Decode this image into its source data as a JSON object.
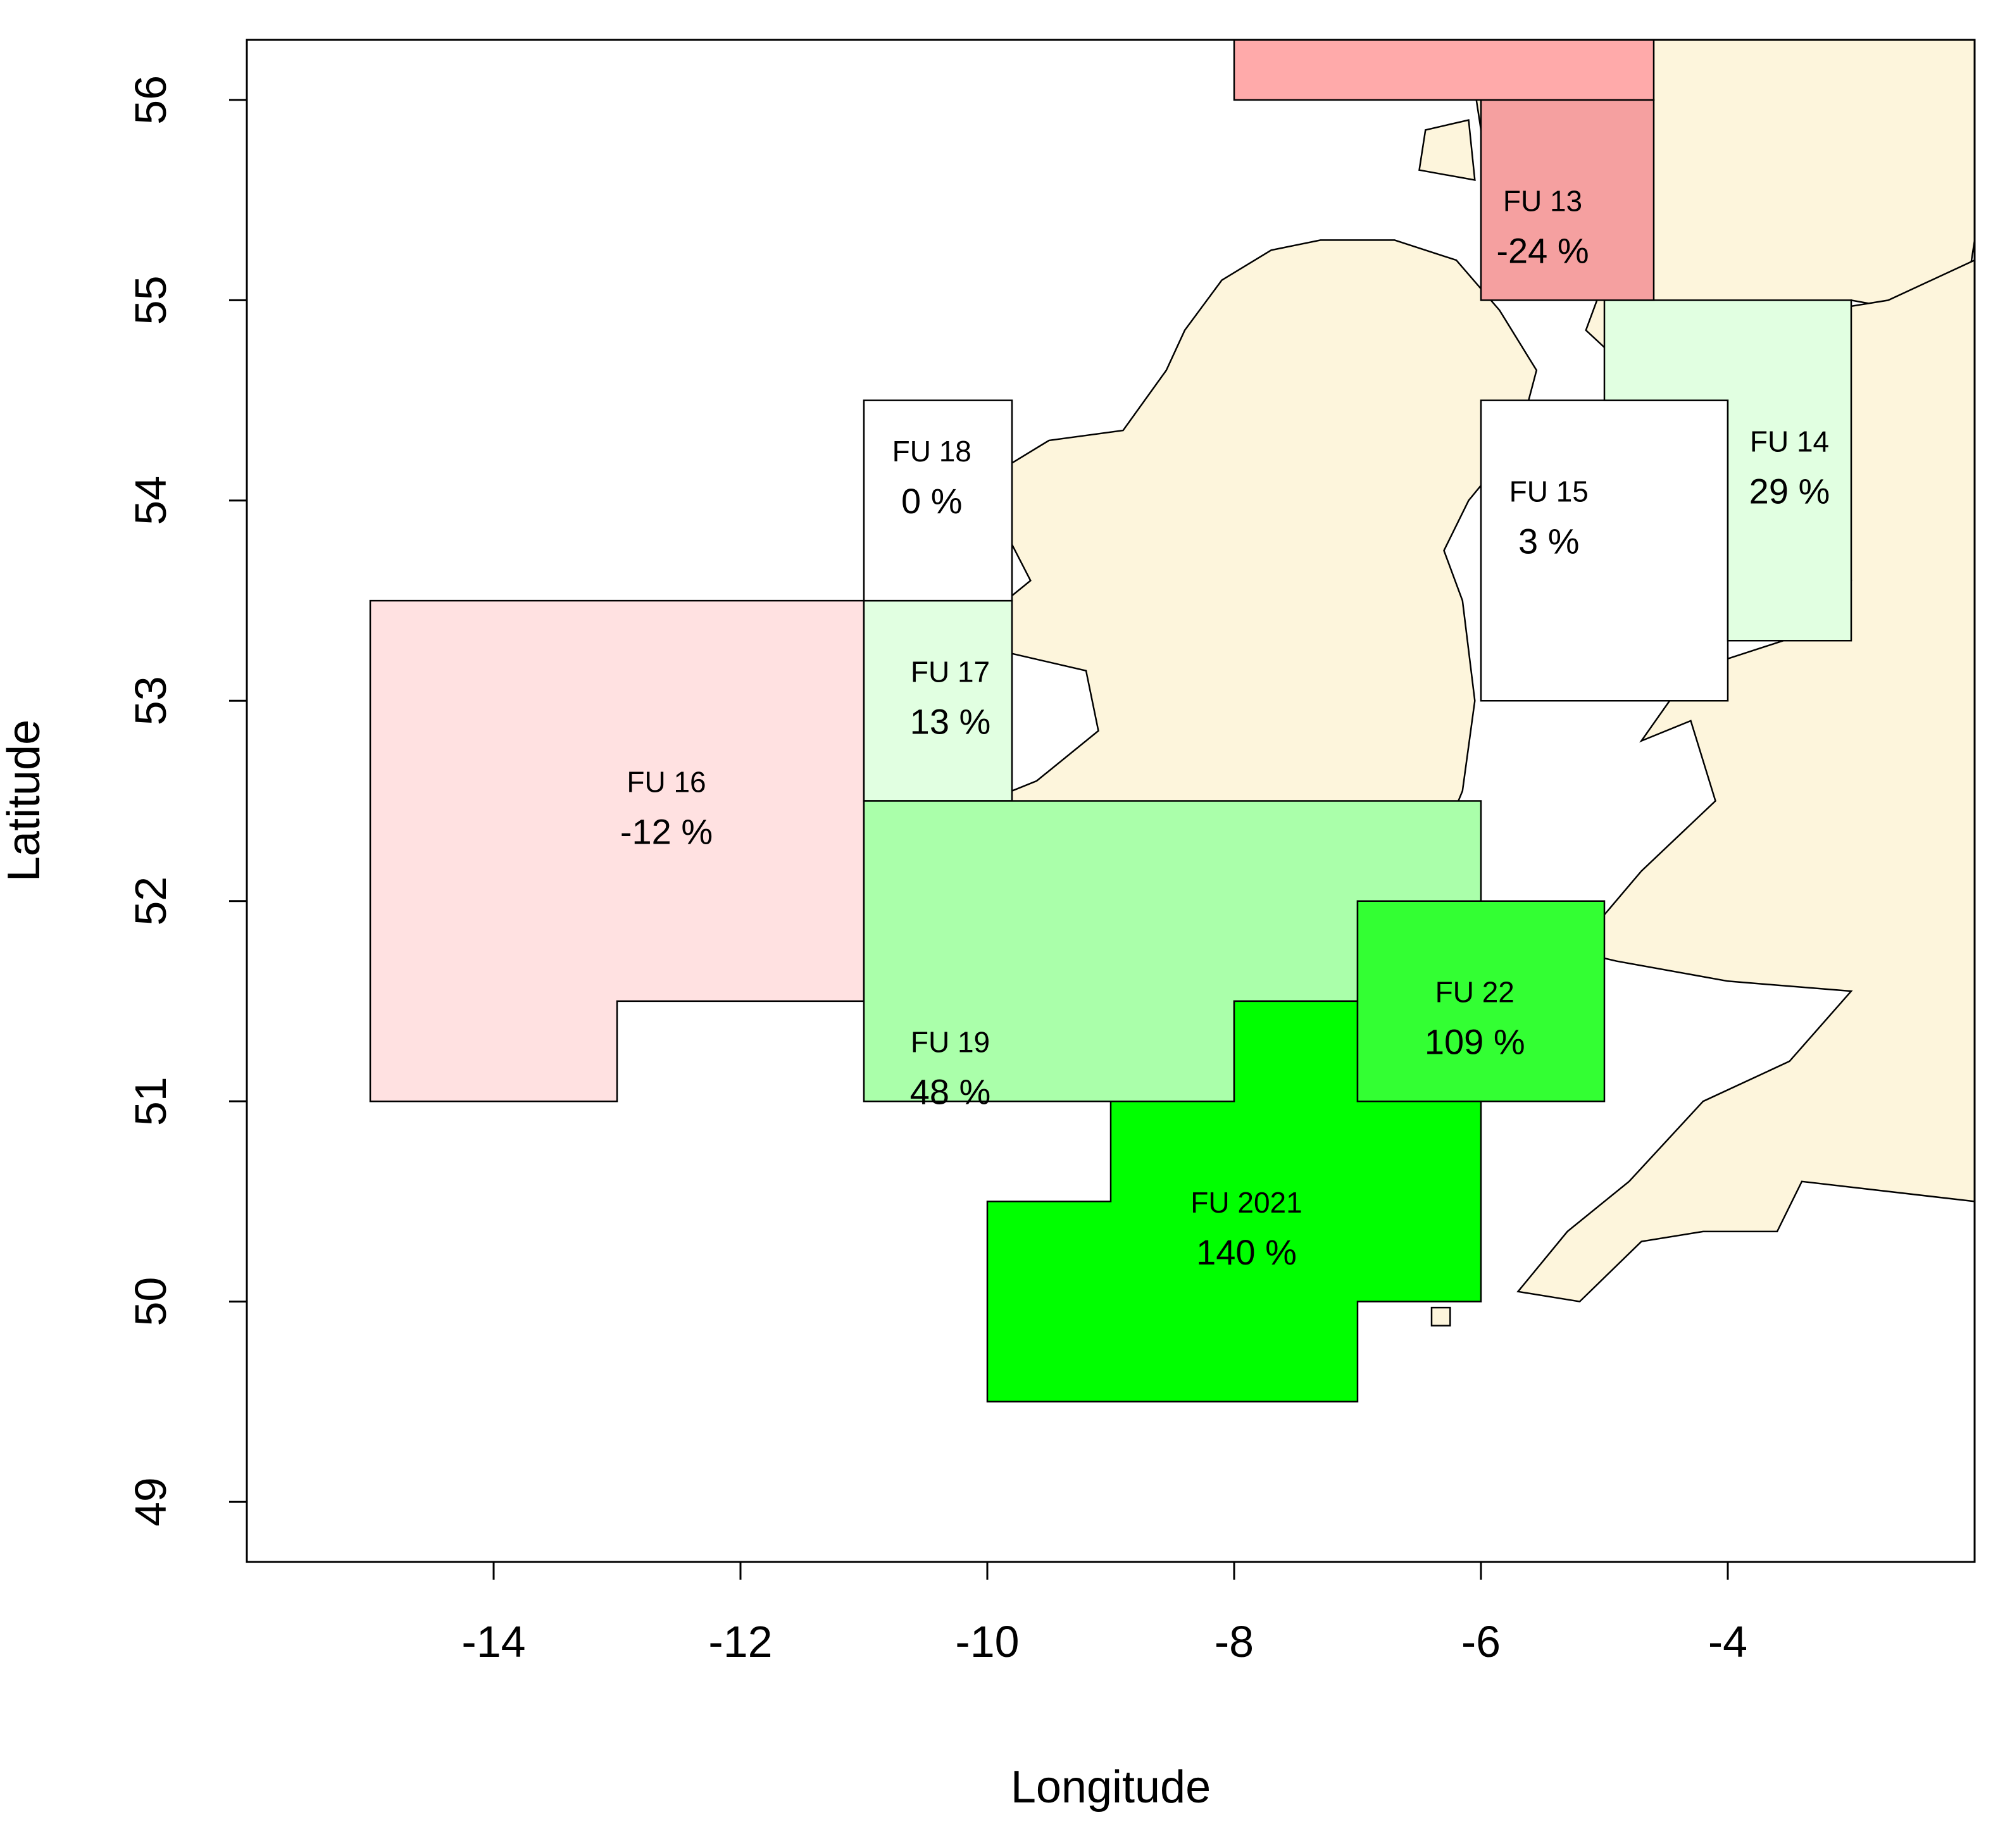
{
  "map": {
    "xlabel": "Longitude",
    "ylabel": "Latitude",
    "xlim": [
      -16,
      -2
    ],
    "ylim": [
      48.7,
      56.3
    ],
    "x_ticks": [
      -14,
      -12,
      -10,
      -8,
      -6,
      -4
    ],
    "y_ticks": [
      49,
      50,
      51,
      52,
      53,
      54,
      55,
      56
    ],
    "x_tick_labels": [
      "-14",
      "-12",
      "-10",
      "-8",
      "-6",
      "-4"
    ],
    "y_tick_labels": [
      "49",
      "50",
      "51",
      "52",
      "53",
      "54",
      "55",
      "56"
    ],
    "land_color": "#FDF5DC",
    "units": [
      {
        "id": "fu-16",
        "name": "FU 16",
        "pct": "-12 %",
        "value": -12,
        "color": "#FFE1E1",
        "coords": [
          [
            -15,
            53.5
          ],
          [
            -11,
            53.5
          ],
          [
            -11,
            51.5
          ],
          [
            -13,
            51.5
          ],
          [
            -13,
            51
          ],
          [
            -15,
            51
          ]
        ],
        "label_lon": -12.6,
        "label_lat": 52.45
      },
      {
        "id": "fu-17",
        "name": "FU 17",
        "pct": "13 %",
        "value": 13,
        "color": "#E1FFE1",
        "coords": [
          [
            -11,
            53.5
          ],
          [
            -9.8,
            53.5
          ],
          [
            -9.8,
            52.5
          ],
          [
            -11,
            52.5
          ]
        ],
        "label_lon": -10.3,
        "label_lat": 53.0
      },
      {
        "id": "fu-18",
        "name": "FU 18",
        "pct": "0 %",
        "value": 0,
        "color": "#FFFFFF",
        "coords": [
          [
            -11,
            54.5
          ],
          [
            -9.8,
            54.5
          ],
          [
            -9.8,
            53.5
          ],
          [
            -11,
            53.5
          ]
        ],
        "label_lon": -10.45,
        "label_lat": 54.1
      },
      {
        "id": "fu-19",
        "name": "FU 19",
        "pct": "48 %",
        "value": 48,
        "color": "#AAFFAA",
        "coords": [
          [
            -11,
            52.5
          ],
          [
            -6,
            52.5
          ],
          [
            -6,
            52
          ],
          [
            -7,
            52
          ],
          [
            -7,
            51.5
          ],
          [
            -8,
            51.5
          ],
          [
            -8,
            51
          ],
          [
            -11,
            51
          ]
        ],
        "label_lon": -10.3,
        "label_lat": 51.15
      },
      {
        "id": "fu-2021",
        "name": "FU 2021",
        "pct": "140 %",
        "value": 140,
        "color": "#00FF00",
        "coords": [
          [
            -8,
            51.5
          ],
          [
            -7,
            51.5
          ],
          [
            -7,
            51
          ],
          [
            -6,
            51
          ],
          [
            -6,
            50
          ],
          [
            -7,
            50
          ],
          [
            -7,
            49.5
          ],
          [
            -10,
            49.5
          ],
          [
            -10,
            50.5
          ],
          [
            -9,
            50.5
          ],
          [
            -9,
            51
          ],
          [
            -8,
            51
          ]
        ],
        "label_lon": -7.9,
        "label_lat": 50.35
      },
      {
        "id": "fu-22",
        "name": "FU 22",
        "pct": "109 %",
        "value": 109,
        "color": "#33FF33",
        "coords": [
          [
            -7,
            52
          ],
          [
            -5,
            52
          ],
          [
            -5,
            51
          ],
          [
            -7,
            51
          ]
        ],
        "label_lon": -6.05,
        "label_lat": 51.4
      },
      {
        "id": "fu-15",
        "name": "FU 15",
        "pct": "3 %",
        "value": 3,
        "color": "#FFFFFF",
        "coords": [
          [
            -6,
            54.5
          ],
          [
            -4,
            54.5
          ],
          [
            -4,
            53
          ],
          [
            -6,
            53
          ]
        ],
        "label_lon": -5.45,
        "label_lat": 53.9
      },
      {
        "id": "fu-14",
        "name": "FU 14",
        "pct": "29 %",
        "value": 29,
        "color": "#E1FFE1",
        "coords": [
          [
            -5,
            55
          ],
          [
            -3,
            55
          ],
          [
            -3,
            53.3
          ],
          [
            -4,
            53.3
          ],
          [
            -4,
            54.5
          ],
          [
            -5,
            54.5
          ]
        ],
        "label_lon": -3.5,
        "label_lat": 54.15
      },
      {
        "id": "fu-13",
        "name": "FU 13",
        "pct": "-24 %",
        "value": -24,
        "color": "#F5A0A0",
        "coords": [
          [
            -6,
            56
          ],
          [
            -4.6,
            56
          ],
          [
            -4.6,
            55
          ],
          [
            -6,
            55
          ]
        ],
        "label_lon": -5.5,
        "label_lat": 55.35
      },
      {
        "id": "fu-north",
        "name": "",
        "pct": "",
        "value": null,
        "color": "#FFAAAA",
        "coords": [
          [
            -8,
            56.3
          ],
          [
            -4.6,
            56.3
          ],
          [
            -4.6,
            56
          ],
          [
            -8,
            56
          ]
        ],
        "label_lon": null,
        "label_lat": null
      }
    ],
    "land": [
      {
        "id": "ireland",
        "coords": [
          [
            -10.0,
            51.6
          ],
          [
            -9.4,
            51.55
          ],
          [
            -8.6,
            51.65
          ],
          [
            -8.0,
            51.85
          ],
          [
            -7.3,
            52.1
          ],
          [
            -6.8,
            52.2
          ],
          [
            -6.35,
            52.25
          ],
          [
            -6.15,
            52.55
          ],
          [
            -6.05,
            53.0
          ],
          [
            -6.15,
            53.5
          ],
          [
            -6.3,
            53.75
          ],
          [
            -6.1,
            54.0
          ],
          [
            -5.7,
            54.3
          ],
          [
            -5.55,
            54.65
          ],
          [
            -5.85,
            54.95
          ],
          [
            -6.2,
            55.2
          ],
          [
            -6.7,
            55.3
          ],
          [
            -7.3,
            55.3
          ],
          [
            -7.7,
            55.25
          ],
          [
            -8.1,
            55.1
          ],
          [
            -8.4,
            54.85
          ],
          [
            -8.55,
            54.65
          ],
          [
            -8.9,
            54.35
          ],
          [
            -9.5,
            54.3
          ],
          [
            -9.9,
            54.15
          ],
          [
            -9.9,
            53.9
          ],
          [
            -9.65,
            53.6
          ],
          [
            -9.95,
            53.45
          ],
          [
            -9.9,
            53.25
          ],
          [
            -9.2,
            53.15
          ],
          [
            -9.1,
            52.85
          ],
          [
            -9.6,
            52.6
          ],
          [
            -9.8,
            52.55
          ],
          [
            -10.3,
            52.15
          ],
          [
            -10.2,
            51.85
          ],
          [
            -10.0,
            51.6
          ]
        ]
      },
      {
        "id": "scotland",
        "coords": [
          [
            -5.2,
            56.3
          ],
          [
            -2.0,
            56.3
          ],
          [
            -2.0,
            55.3
          ],
          [
            -2.1,
            54.9
          ],
          [
            -3.0,
            55.0
          ],
          [
            -3.6,
            54.9
          ],
          [
            -4.4,
            54.7
          ],
          [
            -4.8,
            54.65
          ],
          [
            -5.15,
            54.85
          ],
          [
            -5.0,
            55.1
          ],
          [
            -4.85,
            55.45
          ],
          [
            -4.9,
            55.75
          ],
          [
            -5.2,
            55.95
          ],
          [
            -5.2,
            56.3
          ]
        ]
      },
      {
        "id": "england-wales",
        "coords": [
          [
            -2.0,
            55.2
          ],
          [
            -2.0,
            50.5
          ],
          [
            -3.4,
            50.6
          ],
          [
            -3.6,
            50.35
          ],
          [
            -4.2,
            50.35
          ],
          [
            -4.7,
            50.3
          ],
          [
            -5.2,
            50.0
          ],
          [
            -5.7,
            50.05
          ],
          [
            -5.3,
            50.35
          ],
          [
            -4.8,
            50.6
          ],
          [
            -4.2,
            51.0
          ],
          [
            -3.5,
            51.2
          ],
          [
            -3.0,
            51.55
          ],
          [
            -4.0,
            51.6
          ],
          [
            -4.9,
            51.7
          ],
          [
            -5.25,
            51.75
          ],
          [
            -4.7,
            52.15
          ],
          [
            -4.1,
            52.5
          ],
          [
            -4.3,
            52.9
          ],
          [
            -4.7,
            52.8
          ],
          [
            -4.3,
            53.15
          ],
          [
            -3.3,
            53.35
          ],
          [
            -3.0,
            53.6
          ],
          [
            -3.1,
            54.1
          ],
          [
            -3.4,
            54.4
          ],
          [
            -3.6,
            54.65
          ],
          [
            -3.2,
            54.95
          ],
          [
            -2.7,
            55.0
          ],
          [
            -2.0,
            55.2
          ]
        ]
      },
      {
        "id": "isle-of-man",
        "coords": [
          [
            -4.8,
            54.05
          ],
          [
            -4.35,
            54.2
          ],
          [
            -4.45,
            54.4
          ],
          [
            -4.75,
            54.3
          ],
          [
            -4.8,
            54.05
          ]
        ]
      },
      {
        "id": "arran",
        "coords": [
          [
            -5.35,
            55.5
          ],
          [
            -5.15,
            55.45
          ],
          [
            -5.1,
            55.7
          ],
          [
            -5.3,
            55.75
          ],
          [
            -5.35,
            55.5
          ]
        ]
      },
      {
        "id": "kintyre",
        "coords": [
          [
            -5.85,
            55.3
          ],
          [
            -5.45,
            55.5
          ],
          [
            -5.4,
            55.9
          ],
          [
            -5.6,
            56.0
          ],
          [
            -5.75,
            55.6
          ],
          [
            -5.85,
            55.3
          ]
        ]
      },
      {
        "id": "islay",
        "coords": [
          [
            -6.5,
            55.65
          ],
          [
            -6.05,
            55.6
          ],
          [
            -6.1,
            55.9
          ],
          [
            -6.45,
            55.85
          ],
          [
            -6.5,
            55.65
          ]
        ]
      },
      {
        "id": "jura",
        "coords": [
          [
            -6.0,
            55.85
          ],
          [
            -5.7,
            56.05
          ],
          [
            -5.75,
            56.3
          ],
          [
            -6.05,
            56.05
          ],
          [
            -6.0,
            55.85
          ]
        ]
      },
      {
        "id": "scilly",
        "coords": [
          [
            -6.4,
            49.88
          ],
          [
            -6.25,
            49.88
          ],
          [
            -6.25,
            49.97
          ],
          [
            -6.4,
            49.97
          ],
          [
            -6.4,
            49.88
          ]
        ]
      }
    ]
  }
}
